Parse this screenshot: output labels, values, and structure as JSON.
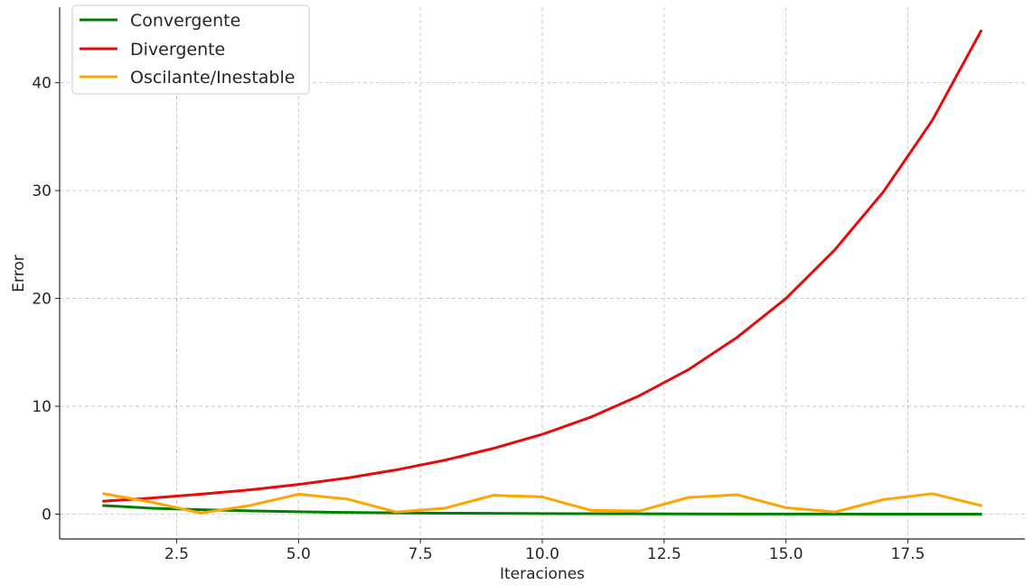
{
  "chart_data": {
    "type": "line",
    "title": "",
    "xlabel": "Iteraciones",
    "ylabel": "Error",
    "xlim": [
      0.1,
      19.9
    ],
    "ylim": [
      -2.3,
      47.0
    ],
    "xticks": [
      2.5,
      5.0,
      7.5,
      10.0,
      12.5,
      15.0,
      17.5
    ],
    "xtick_labels": [
      "2.5",
      "5.0",
      "7.5",
      "10.0",
      "12.5",
      "15.0",
      "17.5"
    ],
    "yticks": [
      0,
      10,
      20,
      30,
      40
    ],
    "ytick_labels": [
      "0",
      "10",
      "20",
      "30",
      "40"
    ],
    "grid": true,
    "legend_position": "top-left",
    "x": [
      1,
      2,
      3,
      4,
      5,
      6,
      7,
      8,
      9,
      10,
      11,
      12,
      13,
      14,
      15,
      16,
      17,
      18,
      19
    ],
    "series": [
      {
        "name": "Convergente",
        "color": "#008000",
        "values": [
          0.8,
          0.55,
          0.41,
          0.31,
          0.22,
          0.16,
          0.12,
          0.09,
          0.07,
          0.05,
          0.04,
          0.03,
          0.02,
          0.015,
          0.01,
          0.008,
          0.006,
          0.004,
          0.003
        ]
      },
      {
        "name": "Divergente",
        "color": "#e8090b",
        "values": [
          1.2,
          1.5,
          1.85,
          2.25,
          2.75,
          3.35,
          4.1,
          5.0,
          6.1,
          7.4,
          9.0,
          11.0,
          13.4,
          16.4,
          20.0,
          24.5,
          29.9,
          36.5,
          44.8
        ]
      },
      {
        "name": "Oscilante/Inestable",
        "color": "#ffa500",
        "values": [
          1.9,
          1.1,
          0.1,
          0.8,
          1.85,
          1.4,
          0.2,
          0.55,
          1.75,
          1.6,
          0.35,
          0.3,
          1.55,
          1.8,
          0.6,
          0.2,
          1.35,
          1.9,
          0.8
        ]
      }
    ]
  }
}
